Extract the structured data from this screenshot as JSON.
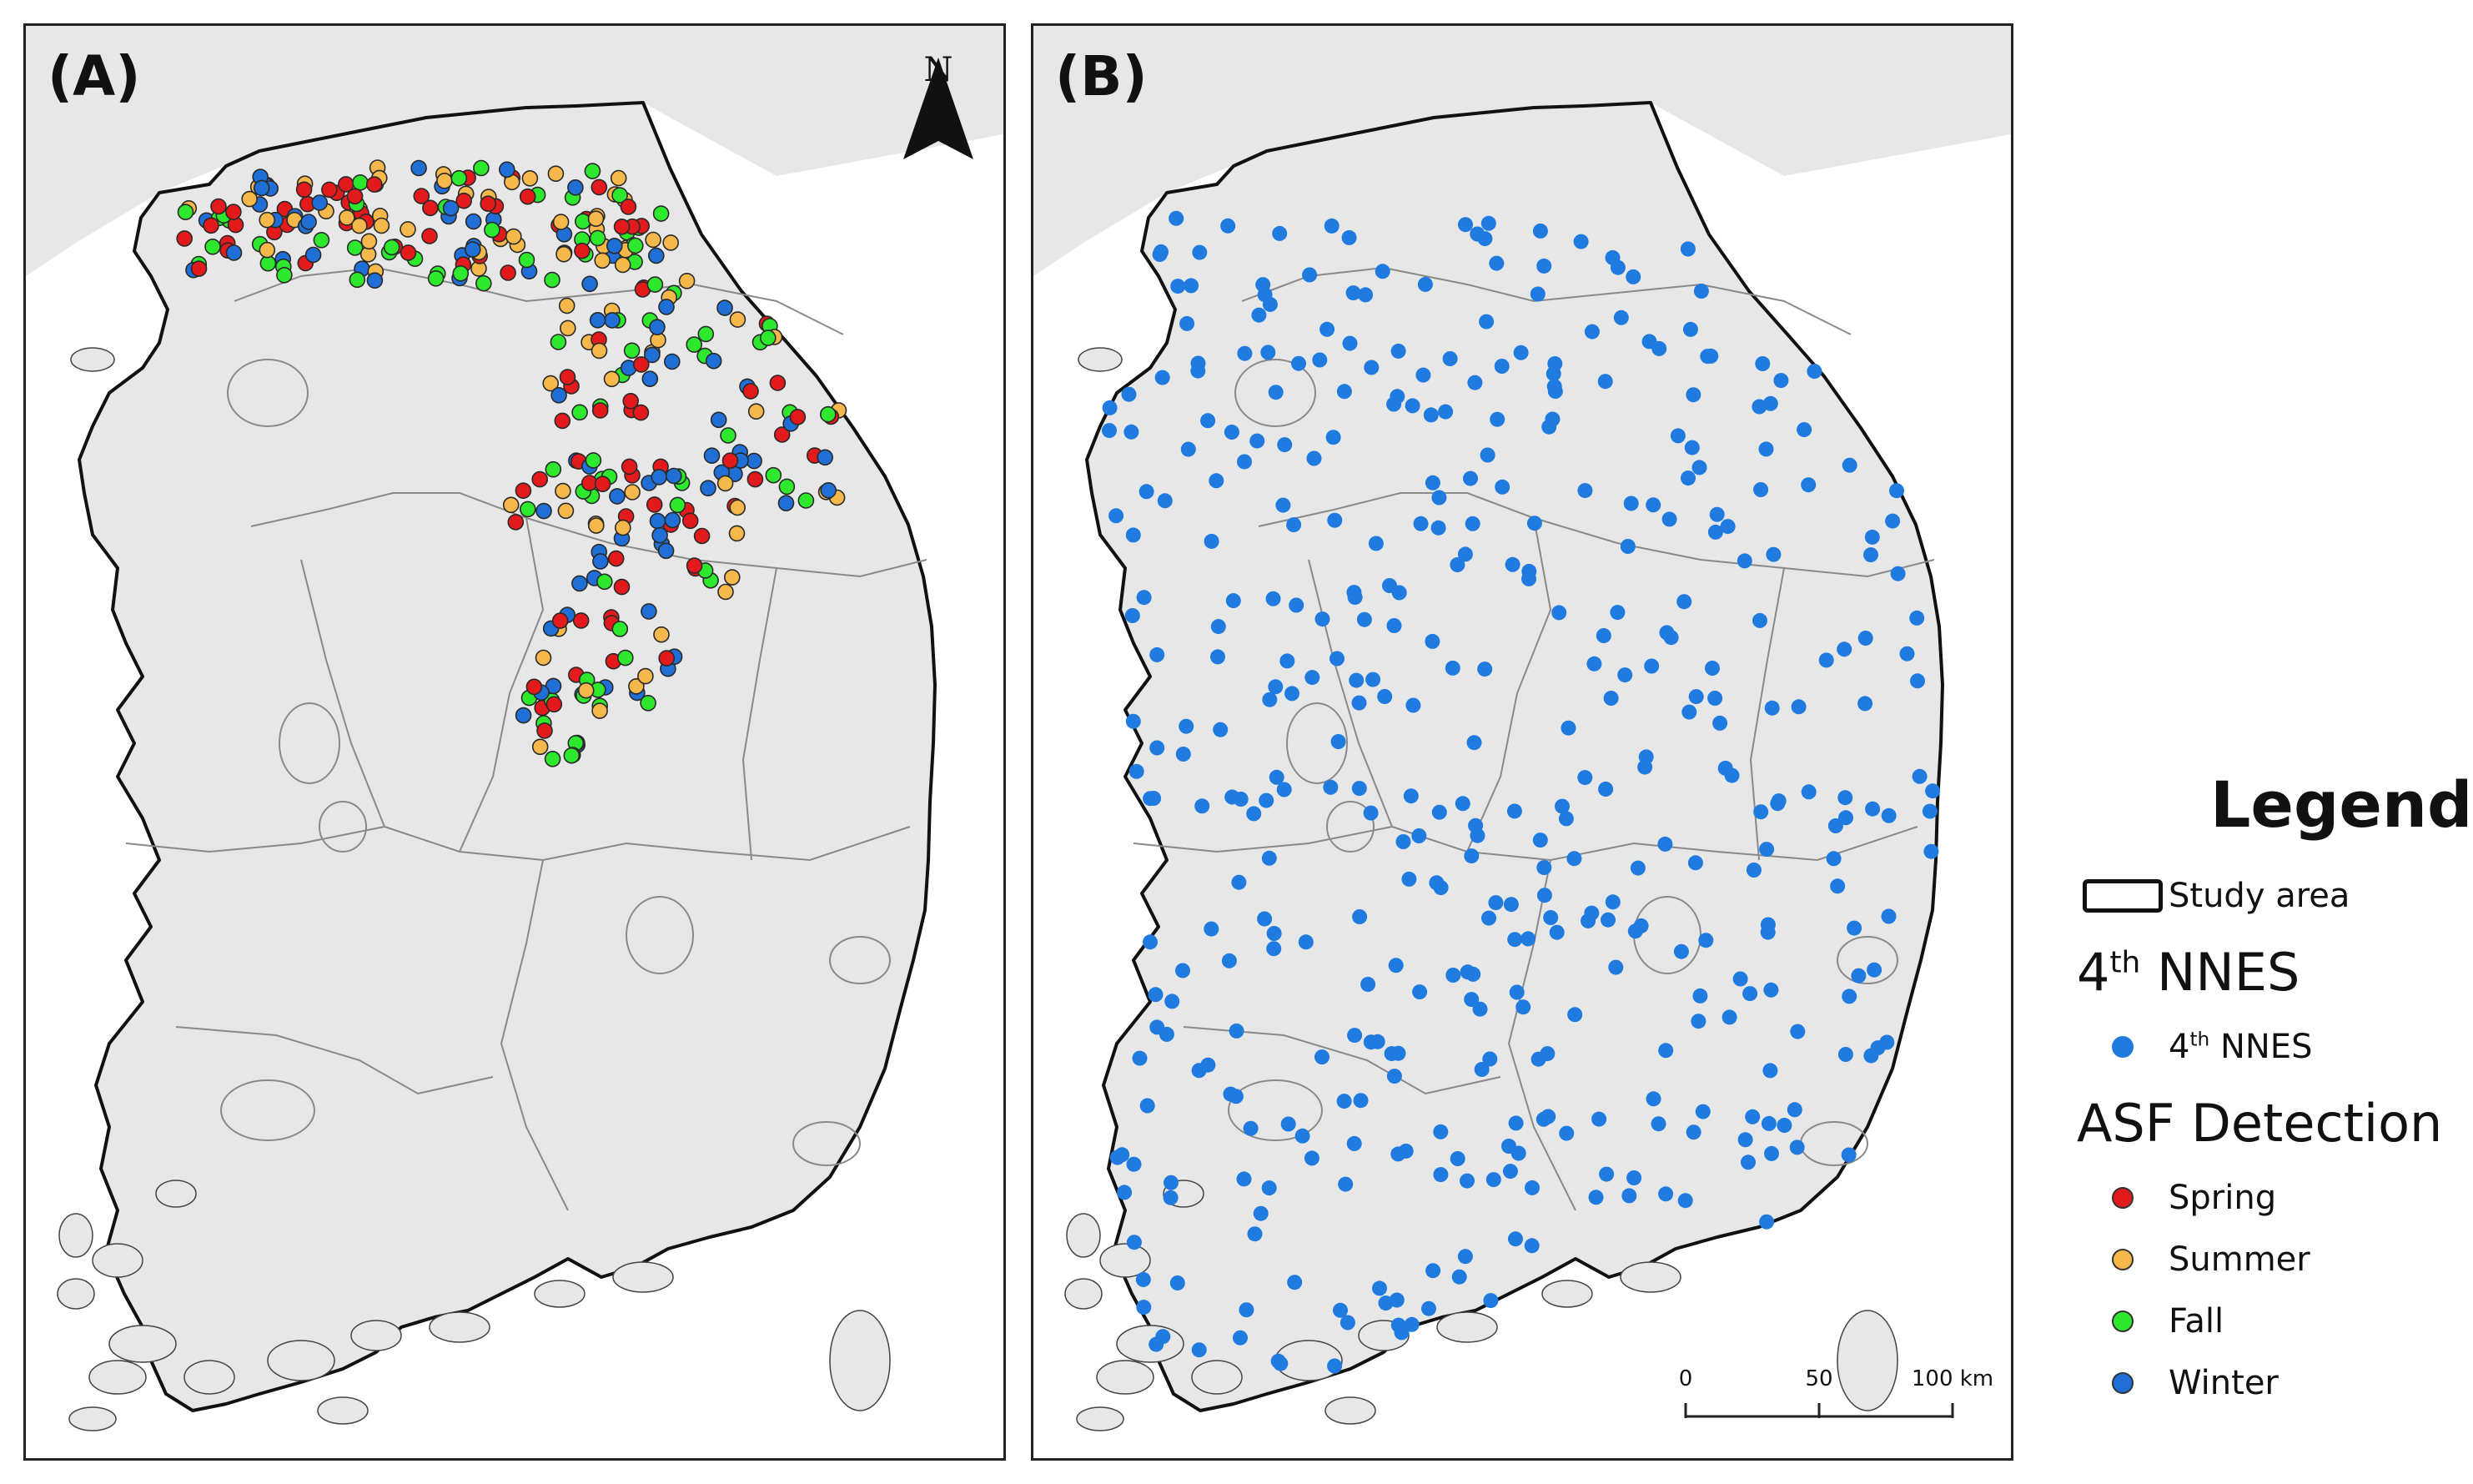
{
  "panels": {
    "a": {
      "label": "(A)",
      "north_letter": "N"
    },
    "b": {
      "label": "(B)"
    }
  },
  "scale": {
    "labels": [
      "0",
      "50",
      "100 km"
    ],
    "values_km": [
      0,
      50,
      100
    ]
  },
  "legend": {
    "title": "Legend",
    "study_area": "Study area",
    "nnes_head": "4",
    "nnes_head_sup": "th",
    "nnes_head_rest": " NNES",
    "nnes_item": "4",
    "nnes_item_sup": "th",
    "nnes_item_rest": " NNES",
    "asf_head": "ASF Detection",
    "seasons": [
      {
        "label": "Spring",
        "color": "#e31a1c"
      },
      {
        "label": "Summer",
        "color": "#f6b84a"
      },
      {
        "label": "Fall",
        "color": "#2ee82e"
      },
      {
        "label": "Winter",
        "color": "#1f6fd6"
      }
    ],
    "nnes_color": "#1f7be0"
  },
  "colors": {
    "land": "#e7e7e7",
    "sea": "#ffffff",
    "boundary": "#111111",
    "province": "#8a8a8a"
  }
}
